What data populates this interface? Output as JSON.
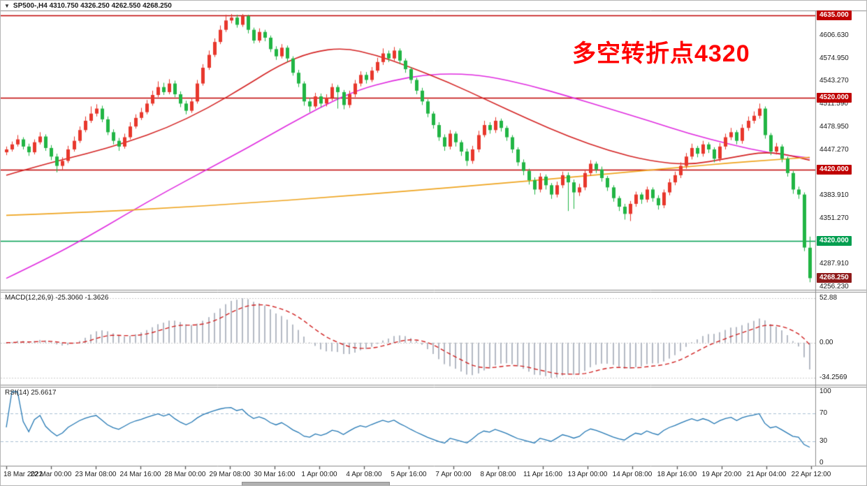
{
  "window": {
    "symbol_info": "SP500-,H4 4310.750 4326.250 4262.550 4268.250",
    "dropdown_icon": "▼"
  },
  "annotation": {
    "text": "多空转折点4320",
    "color": "#ff0000"
  },
  "chart_data": {
    "type": "candlestick",
    "symbol": "SP500-",
    "timeframe": "H4",
    "current_bar": {
      "open": 4310.75,
      "high": 4326.25,
      "low": 4262.55,
      "close": 4268.25
    },
    "price_panel": {
      "ylim": [
        4253,
        4641
      ],
      "bull_color": "#e8372c",
      "bear_color": "#21b544",
      "y_ticks": [
        "4606.630",
        "4574.950",
        "4543.270",
        "4511.590",
        "4478.950",
        "4447.270",
        "4415.590",
        "4383.910",
        "4351.270",
        "4287.910",
        "4256.230"
      ],
      "hlines": [
        {
          "price": 4635.0,
          "label": "4635.000",
          "color": "#c00000"
        },
        {
          "price": 4520.0,
          "label": "4520.000",
          "color": "#c00000"
        },
        {
          "price": 4420.0,
          "label": "4420.000",
          "color": "#c00000"
        },
        {
          "price": 4320.0,
          "label": "4320.000",
          "color": "#009e4f"
        }
      ],
      "current_price": {
        "price": 4268.25,
        "label": "4268.250",
        "color": "#8f1a1a"
      },
      "ma_lines": [
        {
          "name": "ma-slow-magenta",
          "color": "#e02ce0",
          "points": [
            [
              0,
              4268
            ],
            [
              0.05,
              4295
            ],
            [
              0.1,
              4325
            ],
            [
              0.15,
              4358
            ],
            [
              0.2,
              4390
            ],
            [
              0.25,
              4420
            ],
            [
              0.3,
              4450
            ],
            [
              0.35,
              4482
            ],
            [
              0.4,
              4512
            ],
            [
              0.44,
              4532
            ],
            [
              0.48,
              4544
            ],
            [
              0.52,
              4552
            ],
            [
              0.56,
              4554
            ],
            [
              0.6,
              4550
            ],
            [
              0.65,
              4538
            ],
            [
              0.7,
              4522
            ],
            [
              0.75,
              4505
            ],
            [
              0.8,
              4488
            ],
            [
              0.85,
              4470
            ],
            [
              0.9,
              4455
            ],
            [
              0.95,
              4443
            ],
            [
              1,
              4436
            ]
          ]
        },
        {
          "name": "ma-mid-red",
          "color": "#d42424",
          "points": [
            [
              0,
              4412
            ],
            [
              0.05,
              4428
            ],
            [
              0.1,
              4442
            ],
            [
              0.15,
              4458
            ],
            [
              0.2,
              4478
            ],
            [
              0.25,
              4505
            ],
            [
              0.3,
              4538
            ],
            [
              0.34,
              4566
            ],
            [
              0.38,
              4584
            ],
            [
              0.42,
              4590
            ],
            [
              0.46,
              4580
            ],
            [
              0.5,
              4564
            ],
            [
              0.55,
              4542
            ],
            [
              0.6,
              4516
            ],
            [
              0.65,
              4490
            ],
            [
              0.7,
              4466
            ],
            [
              0.75,
              4446
            ],
            [
              0.8,
              4432
            ],
            [
              0.85,
              4426
            ],
            [
              0.9,
              4436
            ],
            [
              0.95,
              4446
            ],
            [
              1,
              4433
            ]
          ]
        },
        {
          "name": "ma-long-orange",
          "color": "#efa520",
          "points": [
            [
              0,
              4356
            ],
            [
              0.1,
              4360
            ],
            [
              0.2,
              4366
            ],
            [
              0.3,
              4373
            ],
            [
              0.4,
              4381
            ],
            [
              0.5,
              4390
            ],
            [
              0.6,
              4399
            ],
            [
              0.7,
              4409
            ],
            [
              0.8,
              4419
            ],
            [
              0.85,
              4424
            ],
            [
              0.9,
              4429
            ],
            [
              0.95,
              4433
            ],
            [
              1,
              4437
            ]
          ]
        }
      ],
      "candles": [
        [
          4444,
          4452,
          4440,
          4448
        ],
        [
          4448,
          4459,
          4445,
          4455
        ],
        [
          4455,
          4468,
          4452,
          4462
        ],
        [
          4462,
          4465,
          4448,
          4452
        ],
        [
          4452,
          4456,
          4439,
          4444
        ],
        [
          4444,
          4462,
          4441,
          4458
        ],
        [
          4458,
          4472,
          4455,
          4466
        ],
        [
          4466,
          4469,
          4446,
          4450
        ],
        [
          4450,
          4454,
          4433,
          4438
        ],
        [
          4438,
          4442,
          4416,
          4425
        ],
        [
          4425,
          4437,
          4420,
          4432
        ],
        [
          4432,
          4453,
          4429,
          4448
        ],
        [
          4448,
          4466,
          4445,
          4460
        ],
        [
          4460,
          4480,
          4457,
          4475
        ],
        [
          4475,
          4494,
          4472,
          4488
        ],
        [
          4488,
          4508,
          4485,
          4498
        ],
        [
          4498,
          4511,
          4494,
          4505
        ],
        [
          4505,
          4509,
          4486,
          4490
        ],
        [
          4490,
          4494,
          4468,
          4472
        ],
        [
          4472,
          4476,
          4455,
          4460
        ],
        [
          4460,
          4464,
          4446,
          4452
        ],
        [
          4452,
          4470,
          4449,
          4465
        ],
        [
          4465,
          4486,
          4462,
          4480
        ],
        [
          4480,
          4497,
          4477,
          4492
        ],
        [
          4492,
          4506,
          4489,
          4500
        ],
        [
          4500,
          4517,
          4497,
          4512
        ],
        [
          4512,
          4530,
          4509,
          4524
        ],
        [
          4524,
          4543,
          4521,
          4535
        ],
        [
          4535,
          4541,
          4524,
          4528
        ],
        [
          4528,
          4546,
          4525,
          4540
        ],
        [
          4540,
          4544,
          4521,
          4525
        ],
        [
          4525,
          4529,
          4507,
          4512
        ],
        [
          4512,
          4516,
          4497,
          4502
        ],
        [
          4502,
          4520,
          4499,
          4515
        ],
        [
          4515,
          4545,
          4512,
          4540
        ],
        [
          4540,
          4567,
          4537,
          4562
        ],
        [
          4562,
          4586,
          4559,
          4580
        ],
        [
          4580,
          4603,
          4577,
          4598
        ],
        [
          4598,
          4621,
          4595,
          4615
        ],
        [
          4615,
          4636,
          4612,
          4628
        ],
        [
          4628,
          4637,
          4624,
          4632
        ],
        [
          4632,
          4636,
          4618,
          4622
        ],
        [
          4622,
          4637,
          4619,
          4634
        ],
        [
          4634,
          4636,
          4610,
          4615
        ],
        [
          4615,
          4618,
          4596,
          4600
        ],
        [
          4600,
          4617,
          4597,
          4612
        ],
        [
          4612,
          4615,
          4599,
          4604
        ],
        [
          4604,
          4607,
          4584,
          4588
        ],
        [
          4588,
          4592,
          4573,
          4578
        ],
        [
          4578,
          4595,
          4575,
          4590
        ],
        [
          4590,
          4593,
          4570,
          4575
        ],
        [
          4575,
          4578,
          4551,
          4555
        ],
        [
          4555,
          4559,
          4535,
          4540
        ],
        [
          4540,
          4543,
          4509,
          4515
        ],
        [
          4515,
          4520,
          4500,
          4508
        ],
        [
          4508,
          4527,
          4505,
          4522
        ],
        [
          4522,
          4526,
          4507,
          4512
        ],
        [
          4512,
          4525,
          4508,
          4520
        ],
        [
          4520,
          4540,
          4516,
          4535
        ],
        [
          4535,
          4538,
          4505,
          4528
        ],
        [
          4528,
          4531,
          4504,
          4510
        ],
        [
          4510,
          4530,
          4506,
          4525
        ],
        [
          4525,
          4545,
          4521,
          4540
        ],
        [
          4540,
          4557,
          4536,
          4552
        ],
        [
          4552,
          4556,
          4540,
          4545
        ],
        [
          4545,
          4563,
          4542,
          4558
        ],
        [
          4558,
          4576,
          4555,
          4570
        ],
        [
          4570,
          4589,
          4566,
          4582
        ],
        [
          4582,
          4586,
          4570,
          4575
        ],
        [
          4575,
          4591,
          4572,
          4586
        ],
        [
          4586,
          4589,
          4567,
          4572
        ],
        [
          4572,
          4575,
          4555,
          4560
        ],
        [
          4560,
          4563,
          4540,
          4545
        ],
        [
          4545,
          4548,
          4525,
          4530
        ],
        [
          4530,
          4534,
          4510,
          4515
        ],
        [
          4515,
          4518,
          4493,
          4498
        ],
        [
          4498,
          4501,
          4477,
          4482
        ],
        [
          4482,
          4486,
          4460,
          4465
        ],
        [
          4465,
          4469,
          4446,
          4452
        ],
        [
          4452,
          4475,
          4448,
          4470
        ],
        [
          4470,
          4473,
          4452,
          4458
        ],
        [
          4458,
          4461,
          4439,
          4445
        ],
        [
          4445,
          4449,
          4425,
          4432
        ],
        [
          4432,
          4453,
          4428,
          4448
        ],
        [
          4448,
          4474,
          4444,
          4468
        ],
        [
          4468,
          4488,
          4465,
          4482
        ],
        [
          4482,
          4486,
          4470,
          4475
        ],
        [
          4475,
          4493,
          4471,
          4488
        ],
        [
          4488,
          4491,
          4473,
          4478
        ],
        [
          4478,
          4481,
          4460,
          4465
        ],
        [
          4465,
          4468,
          4443,
          4448
        ],
        [
          4448,
          4451,
          4425,
          4430
        ],
        [
          4430,
          4434,
          4412,
          4418
        ],
        [
          4418,
          4421,
          4399,
          4405
        ],
        [
          4405,
          4409,
          4385,
          4392
        ],
        [
          4392,
          4415,
          4388,
          4410
        ],
        [
          4410,
          4413,
          4392,
          4398
        ],
        [
          4398,
          4401,
          4379,
          4385
        ],
        [
          4385,
          4403,
          4381,
          4398
        ],
        [
          4398,
          4417,
          4394,
          4412
        ],
        [
          4412,
          4416,
          4362,
          4402
        ],
        [
          4402,
          4406,
          4365,
          4388
        ],
        [
          4388,
          4400,
          4383,
          4395
        ],
        [
          4395,
          4420,
          4391,
          4415
        ],
        [
          4415,
          4433,
          4411,
          4428
        ],
        [
          4428,
          4431,
          4415,
          4420
        ],
        [
          4420,
          4424,
          4403,
          4408
        ],
        [
          4408,
          4411,
          4390,
          4395
        ],
        [
          4395,
          4398,
          4375,
          4380
        ],
        [
          4380,
          4383,
          4362,
          4368
        ],
        [
          4368,
          4372,
          4350,
          4358
        ],
        [
          4358,
          4376,
          4348,
          4372
        ],
        [
          4372,
          4389,
          4368,
          4385
        ],
        [
          4385,
          4388,
          4372,
          4378
        ],
        [
          4378,
          4396,
          4374,
          4392
        ],
        [
          4392,
          4395,
          4375,
          4380
        ],
        [
          4380,
          4384,
          4364,
          4370
        ],
        [
          4370,
          4392,
          4366,
          4388
        ],
        [
          4388,
          4407,
          4384,
          4402
        ],
        [
          4402,
          4417,
          4398,
          4412
        ],
        [
          4412,
          4430,
          4408,
          4425
        ],
        [
          4425,
          4443,
          4421,
          4438
        ],
        [
          4438,
          4456,
          4434,
          4450
        ],
        [
          4450,
          4453,
          4437,
          4442
        ],
        [
          4442,
          4460,
          4438,
          4455
        ],
        [
          4455,
          4458,
          4443,
          4448
        ],
        [
          4448,
          4451,
          4430,
          4435
        ],
        [
          4435,
          4457,
          4431,
          4452
        ],
        [
          4452,
          4470,
          4448,
          4465
        ],
        [
          4465,
          4478,
          4461,
          4472
        ],
        [
          4472,
          4475,
          4455,
          4460
        ],
        [
          4460,
          4483,
          4456,
          4478
        ],
        [
          4478,
          4494,
          4474,
          4488
        ],
        [
          4488,
          4501,
          4484,
          4495
        ],
        [
          4495,
          4512,
          4491,
          4505
        ],
        [
          4505,
          4508,
          4463,
          4468
        ],
        [
          4468,
          4471,
          4440,
          4445
        ],
        [
          4445,
          4457,
          4441,
          4452
        ],
        [
          4452,
          4455,
          4430,
          4435
        ],
        [
          4435,
          4438,
          4410,
          4415
        ],
        [
          4415,
          4418,
          4386,
          4392
        ],
        [
          4392,
          4396,
          4379,
          4385
        ],
        [
          4385,
          4388,
          4306,
          4311
        ],
        [
          4310.75,
          4326.25,
          4262.55,
          4268.25
        ]
      ]
    },
    "macd_panel": {
      "title": "MACD(12,26,9) -25.3060 -1.3626",
      "indicator": "MACD",
      "params": [
        12,
        26,
        9
      ],
      "main_value": -25.306,
      "signal_value": -1.3626,
      "y_ticks": [
        "52.88",
        "0.00",
        "-34.2569"
      ],
      "histogram_color": "#b4bac4",
      "signal_color": "#d02020"
    },
    "rsi_panel": {
      "title": "RSI(14) 25.6617",
      "indicator": "RSI",
      "period": 14,
      "value": 25.6617,
      "y_ticks": [
        "100",
        "70",
        "30",
        "0"
      ],
      "levels": [
        70,
        30
      ],
      "line_color": "#2478b4",
      "level_color": "#a9c0d4"
    },
    "x_axis": {
      "labels": [
        "18 Mar 2022",
        "22 Mar 00:00",
        "23 Mar 08:00",
        "24 Mar 16:00",
        "28 Mar 00:00",
        "29 Mar 08:00",
        "30 Mar 16:00",
        "1 Apr 00:00",
        "4 Apr 08:00",
        "5 Apr 16:00",
        "7 Apr 00:00",
        "8 Apr 08:00",
        "11 Apr 16:00",
        "13 Apr 00:00",
        "14 Apr 08:00",
        "18 Apr 16:00",
        "19 Apr 20:00",
        "21 Apr 04:00",
        "22 Apr 12:00"
      ]
    }
  }
}
